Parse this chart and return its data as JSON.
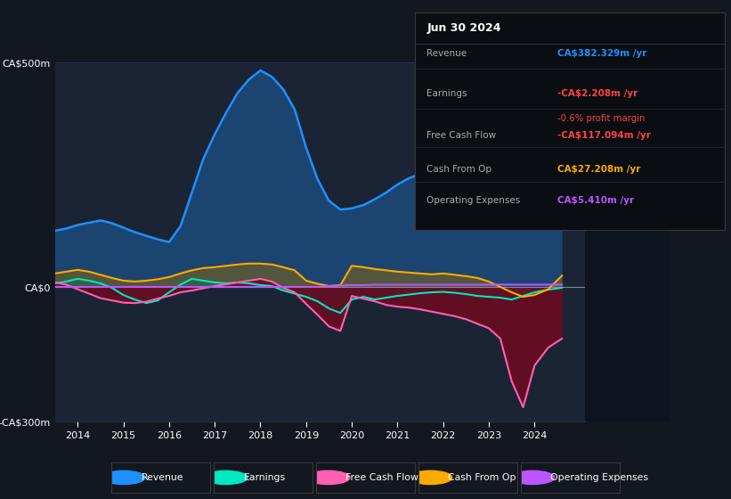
{
  "bg_color": "#131820",
  "chart_bg": "#1b2435",
  "right_bg": "#0d1420",
  "info_bg": "#0a0d12",
  "title_date": "Jun 30 2024",
  "ylim": [
    -300,
    500
  ],
  "xlim": [
    2013.5,
    2025.1
  ],
  "ytick_vals": [
    -300,
    0,
    500
  ],
  "ytick_labels": [
    "-CA$300m",
    "CA$0",
    "CA$500m"
  ],
  "xtick_vals": [
    2014,
    2015,
    2016,
    2017,
    2018,
    2019,
    2020,
    2021,
    2022,
    2023,
    2024
  ],
  "colors": {
    "revenue": "#1e90ff",
    "earnings": "#00e8c0",
    "fcf": "#ff60b0",
    "cash_op": "#ffaa00",
    "op_exp": "#bb55ff",
    "zero_line": "#888899",
    "grid": "#2a3448"
  },
  "years": [
    2013.5,
    2013.75,
    2014.0,
    2014.25,
    2014.5,
    2014.75,
    2015.0,
    2015.25,
    2015.5,
    2015.75,
    2016.0,
    2016.25,
    2016.5,
    2016.75,
    2017.0,
    2017.25,
    2017.5,
    2017.75,
    2018.0,
    2018.25,
    2018.5,
    2018.75,
    2019.0,
    2019.25,
    2019.5,
    2019.75,
    2020.0,
    2020.25,
    2020.5,
    2020.75,
    2021.0,
    2021.25,
    2021.5,
    2021.75,
    2022.0,
    2022.25,
    2022.5,
    2022.75,
    2023.0,
    2023.25,
    2023.5,
    2023.75,
    2024.0,
    2024.3,
    2024.6
  ],
  "revenue": [
    125,
    130,
    138,
    143,
    148,
    142,
    132,
    122,
    114,
    106,
    100,
    135,
    210,
    285,
    340,
    388,
    432,
    462,
    482,
    468,
    440,
    395,
    310,
    240,
    192,
    172,
    175,
    182,
    195,
    210,
    228,
    242,
    252,
    258,
    262,
    267,
    272,
    282,
    298,
    318,
    342,
    365,
    380,
    388,
    395
  ],
  "earnings": [
    8,
    12,
    18,
    14,
    8,
    -2,
    -18,
    -28,
    -36,
    -30,
    -12,
    5,
    18,
    14,
    10,
    8,
    10,
    8,
    4,
    2,
    -8,
    -15,
    -22,
    -32,
    -48,
    -58,
    -28,
    -22,
    -28,
    -24,
    -20,
    -17,
    -14,
    -12,
    -11,
    -13,
    -16,
    -20,
    -22,
    -24,
    -28,
    -20,
    -12,
    -6,
    -2
  ],
  "fcf": [
    10,
    5,
    -5,
    -15,
    -25,
    -30,
    -35,
    -36,
    -33,
    -26,
    -20,
    -12,
    -8,
    -3,
    2,
    6,
    10,
    14,
    18,
    12,
    -2,
    -12,
    -38,
    -62,
    -88,
    -98,
    -20,
    -26,
    -32,
    -40,
    -44,
    -46,
    -50,
    -55,
    -60,
    -65,
    -72,
    -82,
    -92,
    -115,
    -210,
    -268,
    -175,
    -135,
    -115
  ],
  "cash_op": [
    30,
    34,
    38,
    34,
    27,
    20,
    14,
    12,
    14,
    17,
    22,
    30,
    37,
    42,
    44,
    47,
    50,
    52,
    52,
    50,
    44,
    37,
    14,
    7,
    2,
    4,
    47,
    44,
    40,
    37,
    34,
    32,
    30,
    28,
    30,
    27,
    24,
    20,
    12,
    0,
    -12,
    -22,
    -18,
    -5,
    25
  ],
  "op_exp": [
    0,
    0,
    0,
    0,
    0,
    0,
    0,
    0,
    0,
    0,
    0,
    0,
    0,
    0,
    0,
    0,
    0,
    0,
    0,
    0,
    0,
    0,
    0,
    0,
    2,
    3,
    4,
    4,
    5,
    5,
    5,
    5,
    5,
    5,
    5,
    5,
    5,
    5,
    5,
    5,
    5,
    5,
    5,
    5,
    5
  ],
  "legend": [
    {
      "label": "Revenue",
      "color": "#1e90ff"
    },
    {
      "label": "Earnings",
      "color": "#00e8c0"
    },
    {
      "label": "Free Cash Flow",
      "color": "#ff60b0"
    },
    {
      "label": "Cash From Op",
      "color": "#ffaa00"
    },
    {
      "label": "Operating Expenses",
      "color": "#bb55ff"
    }
  ],
  "info_rows": [
    {
      "label": "Revenue",
      "value": "CA$382.329m /yr",
      "color": "#1e90ff",
      "sub": null,
      "sub_color": null
    },
    {
      "label": "Earnings",
      "value": "-CA$2.208m /yr",
      "color": "#ff4444",
      "sub": "-0.6% profit margin",
      "sub_color": "#ff4444"
    },
    {
      "label": "Free Cash Flow",
      "value": "-CA$117.094m /yr",
      "color": "#ff4444",
      "sub": null,
      "sub_color": null
    },
    {
      "label": "Cash From Op",
      "value": "CA$27.208m /yr",
      "color": "#ffaa00",
      "sub": null,
      "sub_color": null
    },
    {
      "label": "Operating Expenses",
      "value": "CA$5.410m /yr",
      "color": "#bb55ff",
      "sub": null,
      "sub_color": null
    }
  ]
}
